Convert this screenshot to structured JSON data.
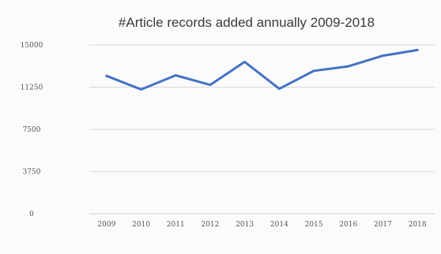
{
  "chart_data": {
    "type": "line",
    "title": "#Article records added annually 2009-2018",
    "xlabel": "",
    "ylabel": "",
    "categories": [
      "2009",
      "2010",
      "2011",
      "2012",
      "2013",
      "2014",
      "2015",
      "2016",
      "2017",
      "2018"
    ],
    "y_ticks": [
      "0",
      "3750",
      "7500",
      "11250",
      "15000"
    ],
    "ylim": [
      0,
      15000
    ],
    "grid": true,
    "legend": "none",
    "series": [
      {
        "name": "",
        "color": "#4472c4",
        "values": [
          12250,
          11050,
          12300,
          11450,
          13500,
          11100,
          12700,
          13100,
          14050,
          14550
        ]
      }
    ]
  }
}
